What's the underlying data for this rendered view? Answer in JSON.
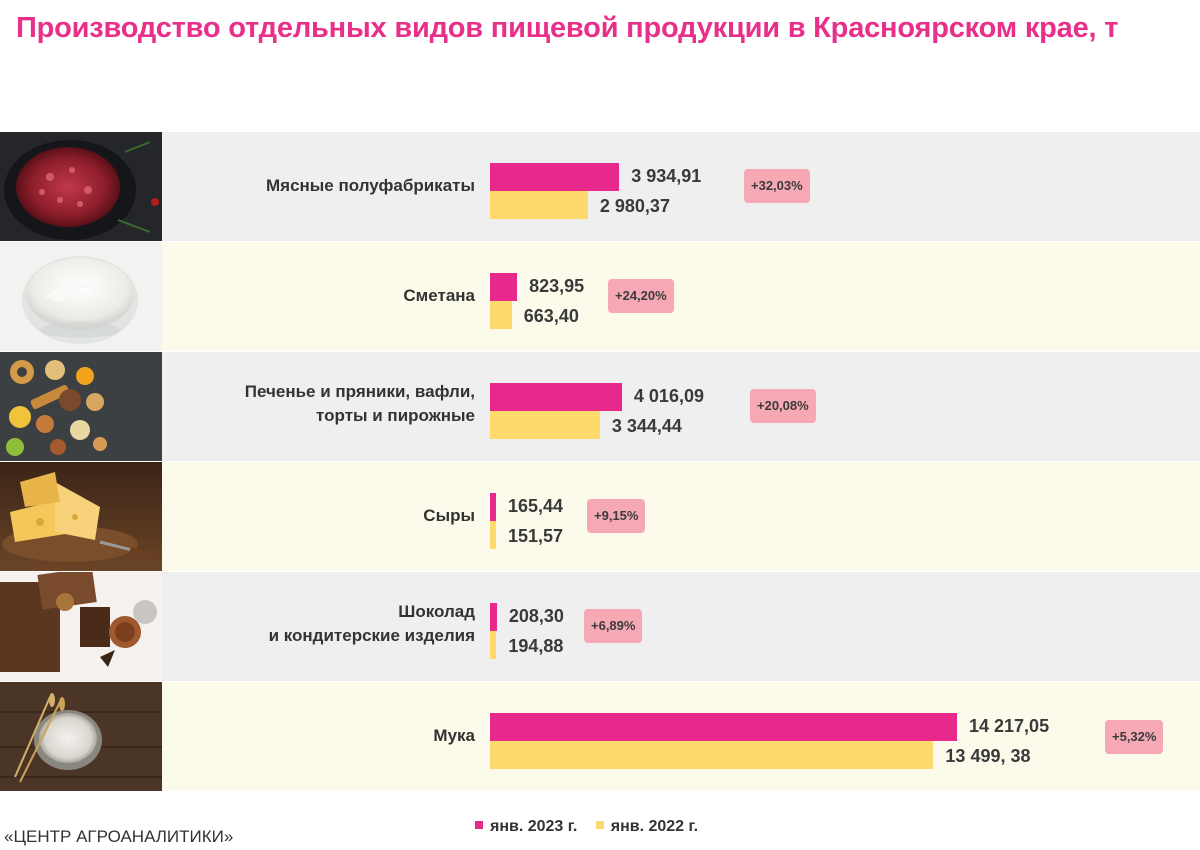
{
  "title": "Производство отдельных видов пищевой продукции в Красноярском крае, т",
  "source": "«ЦЕНТР АГРОАНАЛИТИКИ»",
  "colors": {
    "current": "#e8288b",
    "previous": "#fed96b",
    "badge": "#f6a9b4",
    "title": "#e8308a"
  },
  "chart_data": {
    "type": "bar",
    "orientation": "horizontal",
    "categories": [
      "Мясные полуфабрикаты",
      "Сметана",
      "Печенье и пряники, вафли, торты и пирожные",
      "Сыры",
      "Шоколад и кондитерские изделия",
      "Мука"
    ],
    "category_lines": [
      [
        "Мясные полуфабрикаты"
      ],
      [
        "Сметана"
      ],
      [
        "Печенье и пряники, вафли,",
        "торты и пирожные"
      ],
      [
        "Сыры"
      ],
      [
        "Шоколад",
        "и кондитерские изделия"
      ],
      [
        "Мука"
      ]
    ],
    "series": [
      {
        "name": "янв. 2023 г.",
        "values": [
          3934.91,
          823.95,
          4016.09,
          165.44,
          208.3,
          14217.05
        ]
      },
      {
        "name": "янв. 2022 г.",
        "values": [
          2980.37,
          663.4,
          3344.44,
          151.57,
          194.88,
          13499.38
        ]
      }
    ],
    "value_labels": [
      [
        "3 934,91",
        "823,95",
        "4 016,09",
        "165,44",
        "208,30",
        "14 217,05"
      ],
      [
        "2 980,37",
        "663,40",
        "3 344,44",
        "151,57",
        "194,88",
        "13 499, 38"
      ]
    ],
    "change_labels": [
      "+32,03%",
      "+24,20%",
      "+20,08%",
      "+9,15%",
      "+6,89%",
      "+5,32%"
    ],
    "legend_position": "bottom",
    "grid": false
  },
  "photos": [
    "minced-meat",
    "sour-cream",
    "cookies",
    "cheese",
    "chocolate",
    "flour"
  ]
}
